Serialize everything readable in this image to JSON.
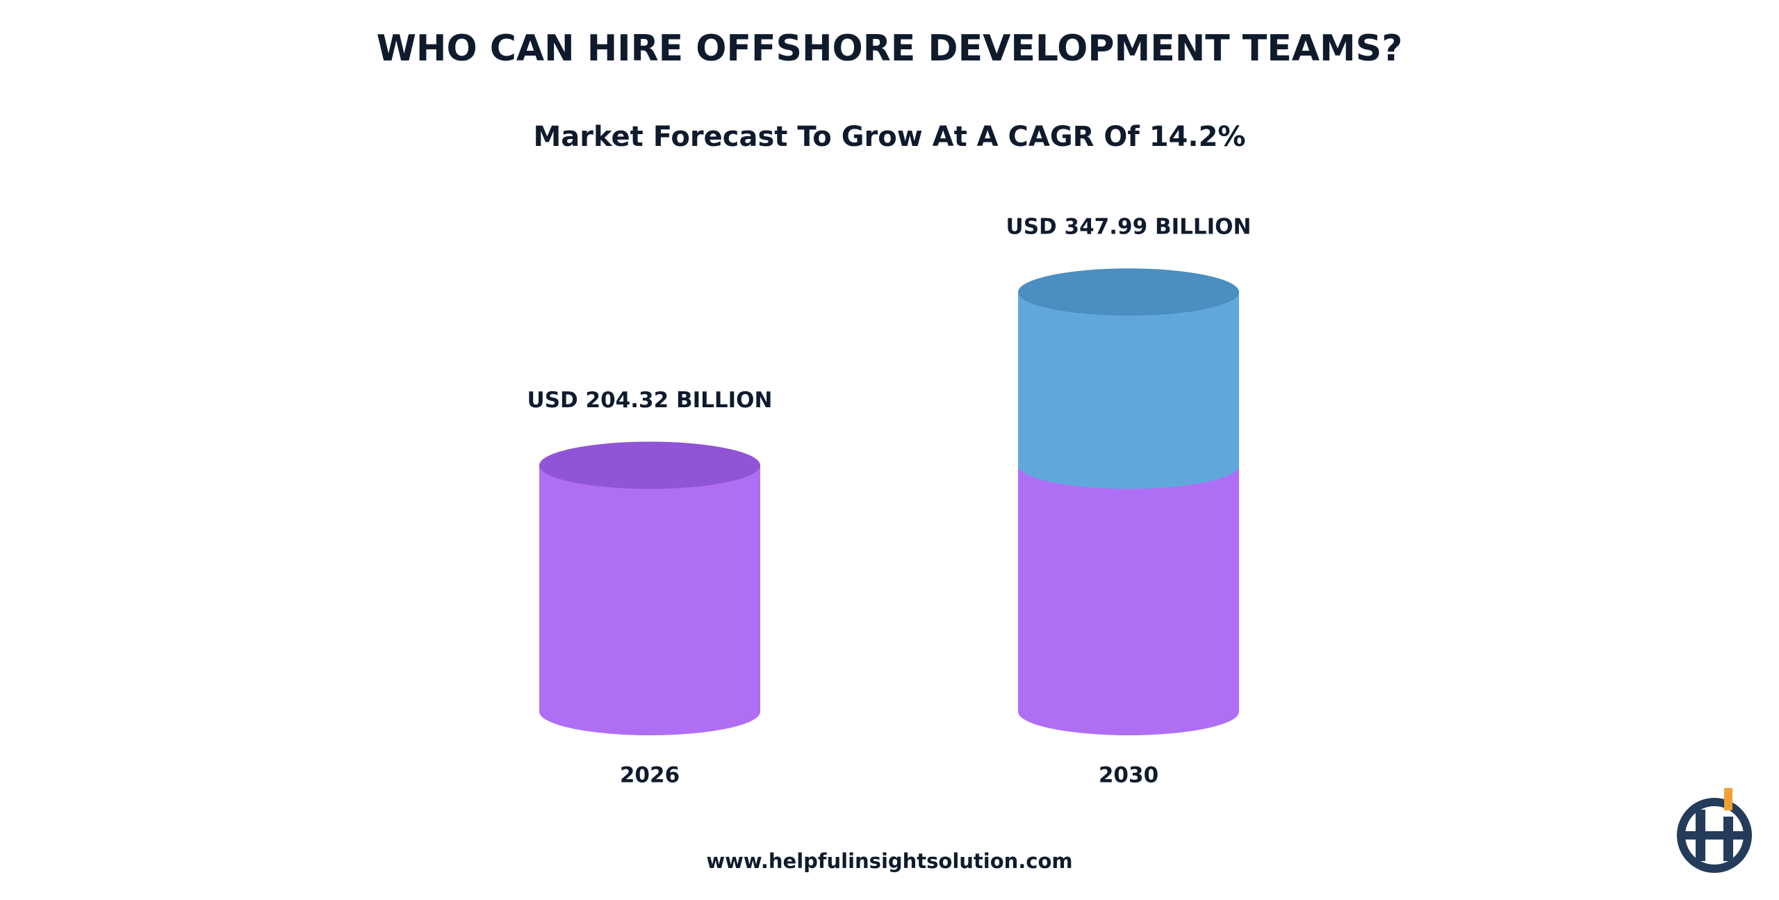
{
  "chart_data": {
    "type": "cylinder",
    "title": "WHO CAN HIRE OFFSHORE DEVELOPMENT TEAMS?",
    "subtitle": "Market Forecast To Grow At A CAGR Of 14.2%",
    "categories": [
      "2026",
      "2030"
    ],
    "values": [
      204.32,
      347.99
    ],
    "value_labels": [
      "USD 204.32 BILLION",
      "USD 347.99 BILLION"
    ],
    "colors": [
      "#b06ef5",
      "#60a8db"
    ],
    "top_colors": [
      "#8f55d6",
      "#4a8ec2"
    ],
    "ylim": [
      0,
      400
    ]
  },
  "footer": "www.helpfulinsightsolution.com"
}
